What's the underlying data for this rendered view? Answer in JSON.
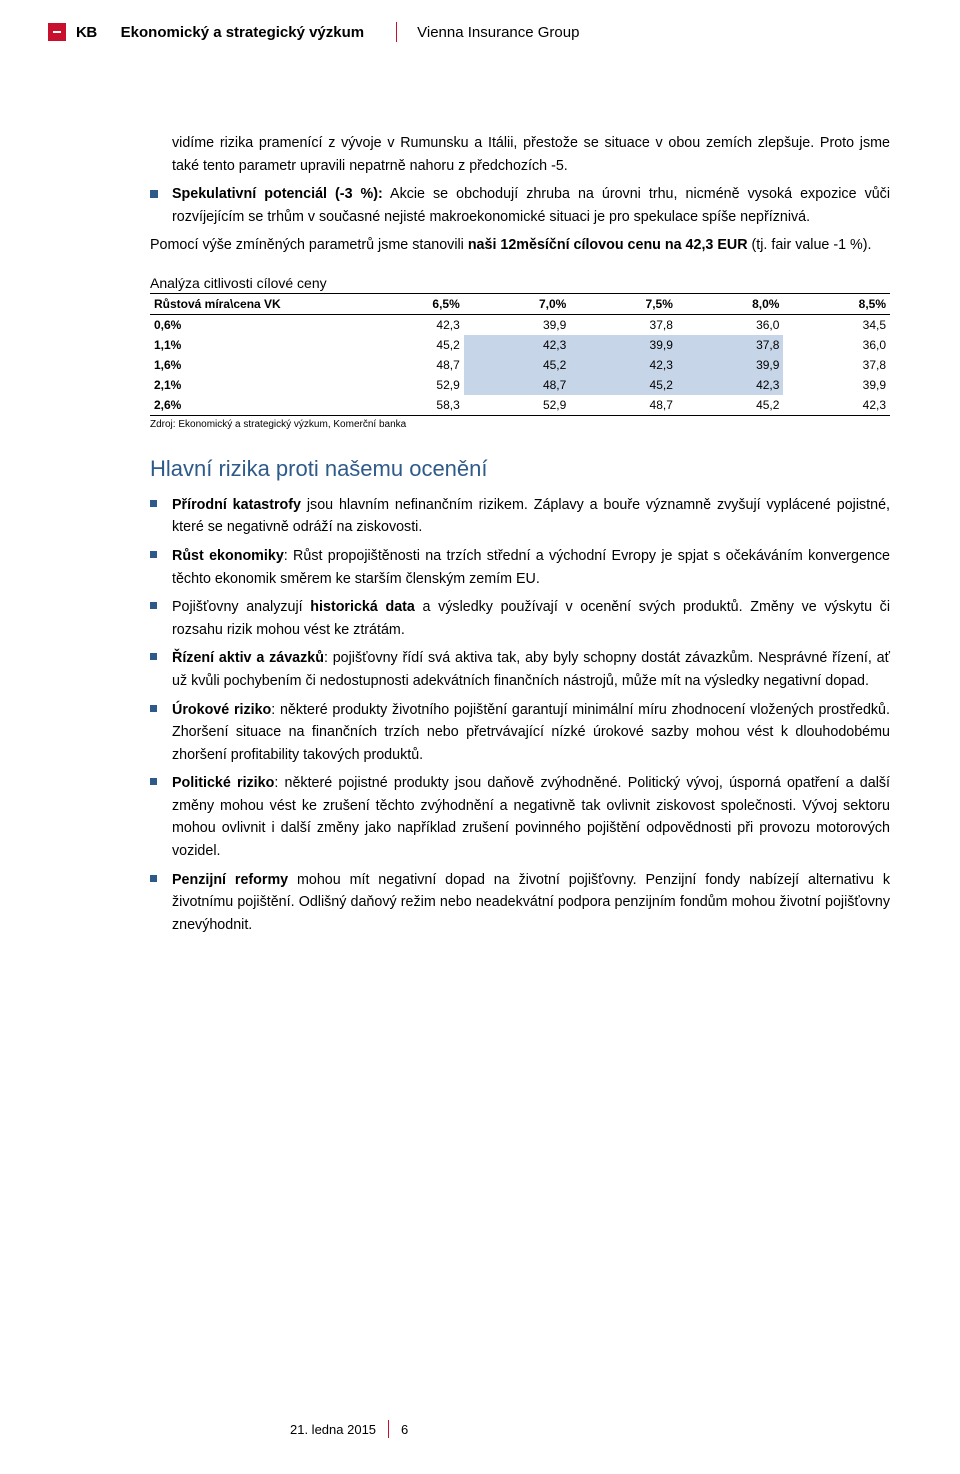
{
  "header": {
    "logo_text": "KB",
    "department": "Ekonomický a strategický výzkum",
    "company": "Vienna Insurance Group"
  },
  "intro_para": "vidíme rizika pramenící z vývoje v Rumunsku a Itálii, přestože se situace v obou zemích zlepšuje. Proto jsme také tento parametr upravili nepatrně nahoru z předchozích -5.",
  "spec_bullet": {
    "prefix": "Spekulativní potenciál (-3 %):",
    "text": " Akcie se obchodují zhruba na úrovni trhu, nicméně vysoká expozice vůči rozvíjejícím se trhům v současné nejisté makroekonomické situaci je pro spekulace spíše nepříznivá."
  },
  "summary": {
    "t1": "Pomocí výše zmíněných parametrů jsme stanovili ",
    "bold": "naši 12měsíční cílovou cenu na 42,3 EUR",
    "t2": " (tj. fair value -1 %)."
  },
  "table": {
    "title": "Analýza citlivosti cílové ceny",
    "header_first": "Růstová míra\\cena VK",
    "col_headers": [
      "6,5%",
      "7,0%",
      "7,5%",
      "8,0%",
      "8,5%"
    ],
    "rows": [
      {
        "label": "0,6%",
        "cells": [
          {
            "v": "42,3",
            "hl": false
          },
          {
            "v": "39,9",
            "hl": false
          },
          {
            "v": "37,8",
            "hl": false
          },
          {
            "v": "36,0",
            "hl": false
          },
          {
            "v": "34,5",
            "hl": false
          }
        ]
      },
      {
        "label": "1,1%",
        "cells": [
          {
            "v": "45,2",
            "hl": false
          },
          {
            "v": "42,3",
            "hl": true
          },
          {
            "v": "39,9",
            "hl": true
          },
          {
            "v": "37,8",
            "hl": true
          },
          {
            "v": "36,0",
            "hl": false
          }
        ]
      },
      {
        "label": "1,6%",
        "cells": [
          {
            "v": "48,7",
            "hl": false
          },
          {
            "v": "45,2",
            "hl": true
          },
          {
            "v": "42,3",
            "hl": true
          },
          {
            "v": "39,9",
            "hl": true
          },
          {
            "v": "37,8",
            "hl": false
          }
        ]
      },
      {
        "label": "2,1%",
        "cells": [
          {
            "v": "52,9",
            "hl": false
          },
          {
            "v": "48,7",
            "hl": true
          },
          {
            "v": "45,2",
            "hl": true
          },
          {
            "v": "42,3",
            "hl": true
          },
          {
            "v": "39,9",
            "hl": false
          }
        ]
      },
      {
        "label": "2,6%",
        "cells": [
          {
            "v": "58,3",
            "hl": false
          },
          {
            "v": "52,9",
            "hl": false
          },
          {
            "v": "48,7",
            "hl": false
          },
          {
            "v": "45,2",
            "hl": false
          },
          {
            "v": "42,3",
            "hl": false
          }
        ]
      }
    ],
    "source": "Zdroj: Ekonomický a strategický výzkum, Komerční banka",
    "highlight_color": "#c7d5e8",
    "border_color": "#000000"
  },
  "section_title": "Hlavní rizika proti našemu ocenění",
  "risks": [
    {
      "bold": "Přírodní katastrofy",
      "text": " jsou hlavním nefinančním rizikem. Záplavy a bouře významně zvyšují vyplácené pojistné, které se negativně odráží na ziskovosti."
    },
    {
      "bold": "Růst ekonomiky",
      "text": ": Růst propojištěnosti na trzích střední a východní Evropy je spjat s očekáváním konvergence těchto ekonomik směrem ke starším členským zemím EU."
    },
    {
      "pre": "Pojišťovny analyzují ",
      "bold": "historická data",
      "text": " a výsledky používají v ocenění svých produktů. Změny ve výskytu či rozsahu rizik mohou vést ke ztrátám."
    },
    {
      "bold": "Řízení aktiv a závazků",
      "text": ": pojišťovny řídí svá aktiva tak, aby byly schopny dostát závazkům. Nesprávné řízení, ať už kvůli pochybením či nedostupnosti adekvátních finančních nástrojů, může mít na výsledky negativní dopad."
    },
    {
      "bold": "Úrokové riziko",
      "text": ": některé produkty životního pojištění garantují minimální míru zhodnocení vložených prostředků. Zhoršení situace na finančních trzích nebo přetrvávající nízké úrokové sazby mohou vést k dlouhodobému zhoršení profitability takových produktů."
    },
    {
      "bold": "Politické riziko",
      "text": ": některé pojistné produkty jsou daňově zvýhodněné. Politický vývoj, úsporná opatření a další změny mohou vést ke zrušení těchto zvýhodnění a negativně tak ovlivnit ziskovost společnosti. Vývoj sektoru mohou ovlivnit i další změny jako například zrušení povinného pojištění odpovědnosti při provozu motorových vozidel."
    },
    {
      "bold": "Penzijní reformy",
      "text": " mohou mít negativní dopad na životní pojišťovny. Penzijní fondy nabízejí alternativu k životnímu pojištění. Odlišný daňový režim nebo neadekvátní podpora penzijním fondům mohou životní pojišťovny znevýhodnit."
    }
  ],
  "footer": {
    "date": "21. ledna 2015",
    "page": "6"
  },
  "colors": {
    "brand_red": "#c8102e",
    "heading_blue": "#2e5a8a",
    "bullet_blue": "#2e5a8a",
    "background": "#ffffff",
    "text": "#000000"
  },
  "typography": {
    "body_font": "Arial",
    "body_size_pt": 11,
    "heading_size_pt": 17,
    "table_size_pt": 9,
    "source_size_pt": 8
  }
}
